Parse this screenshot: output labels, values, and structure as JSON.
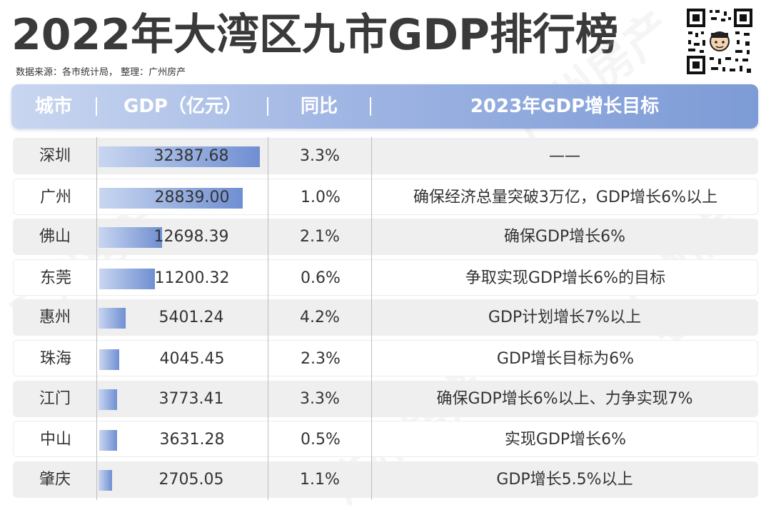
{
  "title": "2022年大湾区九市GDP排行榜",
  "source": "数据来源：各市统计局， 整理：广州房产",
  "watermark": "广州房产",
  "header": {
    "city": "城市",
    "gdp": "GDP（亿元）",
    "yoy": "同比",
    "target": "2023年GDP增长目标"
  },
  "colors": {
    "header_start": "#c9d6f0",
    "header_end": "#7d9bd6",
    "bar_start": "#c8d6f0",
    "bar_end": "#6f8fd2"
  },
  "chart_data": {
    "type": "table",
    "title": "2022年大湾区九市GDP排行榜",
    "columns": [
      "城市",
      "GDP（亿元）",
      "同比",
      "2023年GDP增长目标"
    ],
    "gdp_max": 32387.68,
    "rows": [
      {
        "city": "深圳",
        "gdp": 32387.68,
        "gdp_text": "32387.68",
        "yoy": "3.3%",
        "target": "——"
      },
      {
        "city": "广州",
        "gdp": 28839.0,
        "gdp_text": "28839.00",
        "yoy": "1.0%",
        "target": "确保经济总量突破3万亿，GDP增长6%以上"
      },
      {
        "city": "佛山",
        "gdp": 12698.39,
        "gdp_text": "12698.39",
        "yoy": "2.1%",
        "target": "确保GDP增长6%"
      },
      {
        "city": "东莞",
        "gdp": 11200.32,
        "gdp_text": "11200.32",
        "yoy": "0.6%",
        "target": "争取实现GDP增长6%的目标"
      },
      {
        "city": "惠州",
        "gdp": 5401.24,
        "gdp_text": "5401.24",
        "yoy": "4.2%",
        "target": "GDP计划增长7%以上"
      },
      {
        "city": "珠海",
        "gdp": 4045.45,
        "gdp_text": "4045.45",
        "yoy": "2.3%",
        "target": "GDP增长目标为6%"
      },
      {
        "city": "江门",
        "gdp": 3773.41,
        "gdp_text": "3773.41",
        "yoy": "3.3%",
        "target": "确保GDP增长6%以上、力争实现7%"
      },
      {
        "city": "中山",
        "gdp": 3631.28,
        "gdp_text": "3631.28",
        "yoy": "0.5%",
        "target": "实现GDP增长6%"
      },
      {
        "city": "肇庆",
        "gdp": 2705.05,
        "gdp_text": "2705.05",
        "yoy": "1.1%",
        "target": "GDP增长5.5%以上"
      }
    ]
  }
}
